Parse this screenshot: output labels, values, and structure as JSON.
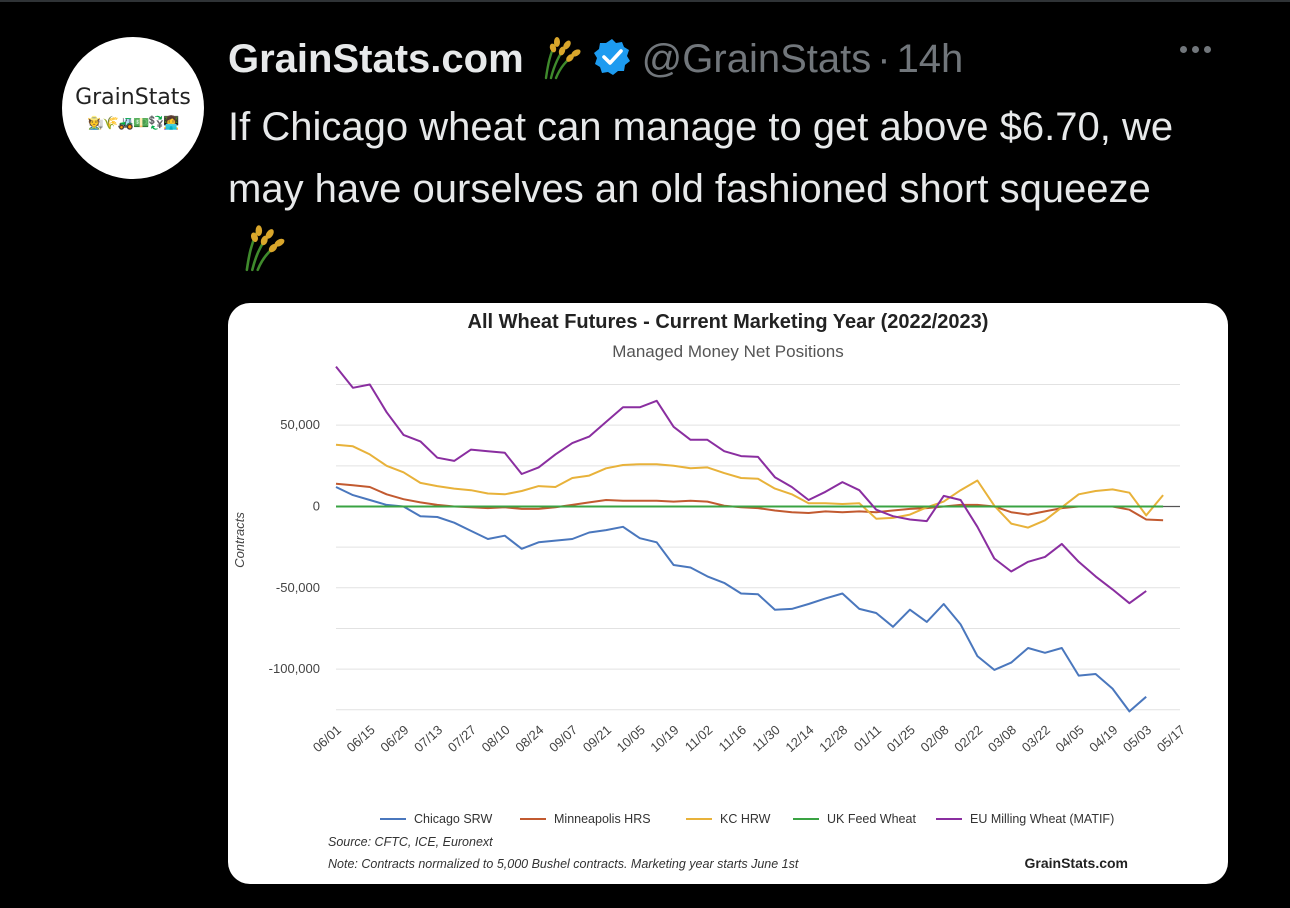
{
  "tweet": {
    "avatar_text": "GrainStats",
    "avatar_emoji": "🧑‍🌾🌾🚜💵💱👩‍💻",
    "display_name": "GrainStats.com",
    "name_emoji_icon": "sheaf-of-rice-icon",
    "verified_icon": "verified-badge-icon",
    "handle": "@GrainStats",
    "separator": "·",
    "time": "14h",
    "text": "If Chicago wheat can manage to get above $6.70, we may have ourselves an old fashioned short squeeze",
    "text_emoji_icon": "sheaf-of-rice-icon",
    "more_icon": "more-options-icon"
  },
  "colors": {
    "background": "#000000",
    "text": "#e7e9ea",
    "muted": "#71767b",
    "verified": "#1d9bf0",
    "wheat": "#d9a62b"
  },
  "chart_data": {
    "type": "line",
    "title": "All Wheat Futures - Current Marketing Year (2022/2023)",
    "subtitle": "Managed Money Net Positions",
    "xlabel": "",
    "ylabel": "Contracts",
    "ylim": [
      -127000,
      87000
    ],
    "yticks": [
      50000,
      0,
      -50000,
      -100000
    ],
    "ytick_labels": [
      "50,000",
      "0",
      "-50,000",
      "-100,000"
    ],
    "x_tick_labels": [
      "06/01",
      "06/15",
      "06/29",
      "07/13",
      "07/27",
      "08/10",
      "08/24",
      "09/07",
      "09/21",
      "10/05",
      "10/19",
      "11/02",
      "11/16",
      "11/30",
      "12/14",
      "12/28",
      "01/11",
      "01/25",
      "02/08",
      "02/22",
      "03/08",
      "03/22",
      "04/05",
      "04/19",
      "05/03",
      "05/17"
    ],
    "x_count": 51,
    "grid": true,
    "legend_position": "bottom",
    "series": [
      {
        "name": "Chicago SRW",
        "color": "#4a77bd",
        "values": [
          12000,
          7000,
          4000,
          1000,
          0,
          -6000,
          -6500,
          -10000,
          -15000,
          -20000,
          -18000,
          -26000,
          -22000,
          -21000,
          -20000,
          -16000,
          -14500,
          -12500,
          -19500,
          -22000,
          -36000,
          -37500,
          -43000,
          -47000,
          -53500,
          -54000,
          -63500,
          -63000,
          -60000,
          -56500,
          -53500,
          -63000,
          -65500,
          -74000,
          -63500,
          -71000,
          -60000,
          -72500,
          -92000,
          -100500,
          -96000,
          -87000,
          -90000,
          -87000,
          -104000,
          -103000,
          -112000,
          -126000,
          -117000
        ]
      },
      {
        "name": "Minneapolis HRS",
        "color": "#c25a30",
        "values": [
          14000,
          13000,
          12000,
          7500,
          4500,
          2500,
          1000,
          0,
          -500,
          -1000,
          -500,
          -1500,
          -1500,
          -500,
          1000,
          2500,
          4000,
          3500,
          3500,
          3500,
          3000,
          3500,
          3000,
          500,
          -500,
          -1000,
          -2500,
          -3500,
          -4000,
          -3000,
          -3500,
          -3000,
          -3500,
          -2500,
          -1500,
          -1000,
          0,
          1000,
          1000,
          0,
          -3500,
          -5000,
          -3000,
          -1000,
          0,
          0,
          0,
          -2000,
          -8000,
          -8500
        ]
      },
      {
        "name": "KC HRW",
        "color": "#e8b23a",
        "values": [
          38000,
          37000,
          32000,
          25000,
          21000,
          14500,
          12500,
          11000,
          10000,
          8000,
          7500,
          9500,
          12500,
          12000,
          17500,
          19000,
          23500,
          25500,
          26000,
          26000,
          25000,
          23500,
          24000,
          20500,
          17500,
          17000,
          11000,
          7500,
          2000,
          2000,
          1500,
          2000,
          -7500,
          -7000,
          -5000,
          -500,
          3000,
          10000,
          16000,
          500,
          -10500,
          -13000,
          -8500,
          -500,
          7500,
          9500,
          10500,
          8500,
          -5500,
          7000
        ]
      },
      {
        "name": "UK Feed Wheat",
        "color": "#3aa343",
        "values": [
          0,
          0,
          0,
          0,
          0,
          0,
          0,
          0,
          0,
          0,
          0,
          0,
          0,
          0,
          0,
          0,
          0,
          0,
          0,
          0,
          0,
          0,
          0,
          0,
          0,
          0,
          0,
          0,
          0,
          0,
          0,
          0,
          0,
          0,
          0,
          0,
          0,
          0,
          0,
          0,
          0,
          0,
          0,
          0,
          0,
          0,
          0,
          0,
          0,
          0
        ]
      },
      {
        "name": "EU Milling Wheat (MATIF)",
        "color": "#8a2ea0",
        "values": [
          86000,
          73000,
          75000,
          58000,
          44000,
          40000,
          30000,
          28000,
          35000,
          34000,
          33000,
          20000,
          24000,
          32000,
          39000,
          43000,
          52000,
          61000,
          61000,
          65000,
          49000,
          41000,
          41000,
          34000,
          31000,
          30500,
          18000,
          12000,
          4000,
          9000,
          15000,
          10000,
          -2000,
          -6000,
          -8000,
          -9000,
          6500,
          4000,
          -12500,
          -32000,
          -40000,
          -34000,
          -31000,
          -23000,
          -34000,
          -43000,
          -51000,
          -59500,
          -52000
        ]
      }
    ],
    "source": "Source: CFTC, ICE, Euronext",
    "note": "Note: Contracts normalized to 5,000 Bushel contracts. Marketing year starts June 1st",
    "watermark": "GrainStats.com"
  }
}
